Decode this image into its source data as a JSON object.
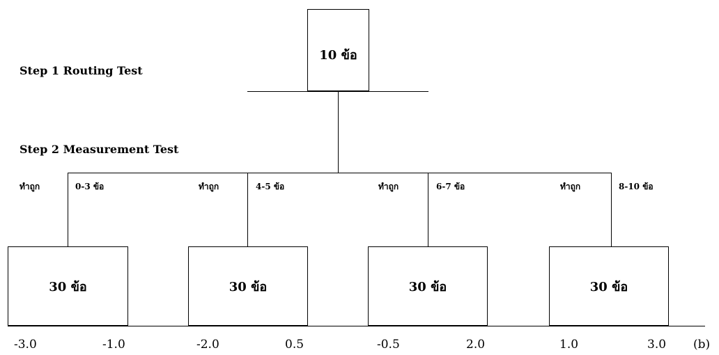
{
  "routing": {
    "step_label": "Step 1 Routing Test",
    "box_label": "10 ข้อ"
  },
  "measurement": {
    "step_label": "Step 2 Measurement Test",
    "branches": [
      {
        "prefix": "ทำถูก",
        "range": "0-3 ข้อ",
        "box_label": "30 ข้อ",
        "scale_low": "-3.0",
        "scale_high": "-1.0"
      },
      {
        "prefix": "ทำถูก",
        "range": "4-5 ข้อ",
        "box_label": "30 ข้อ",
        "scale_low": "-2.0",
        "scale_high": "0.5"
      },
      {
        "prefix": "ทำถูก",
        "range": "6-7 ข้อ",
        "box_label": "30 ข้อ",
        "scale_low": "-0.5",
        "scale_high": "2.0"
      },
      {
        "prefix": "ทำถูก",
        "range": "8-10 ข้อ",
        "box_label": "30 ข้อ",
        "scale_low": "1.0",
        "scale_high": "3.0"
      }
    ]
  },
  "axis": {
    "marker": "(b)"
  }
}
